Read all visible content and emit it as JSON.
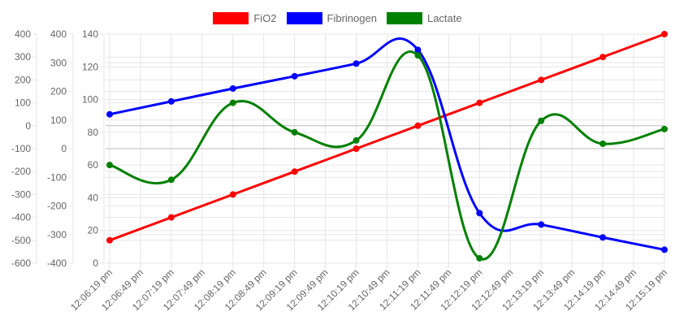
{
  "colors": {
    "fio2": "#ff0000",
    "fibrinogen": "#0000ff",
    "lactate": "#008000",
    "grid": "#e6e6e6",
    "zero_line": "#bbbbbb",
    "tick_text": "#666666"
  },
  "chart_data": {
    "type": "line",
    "legend_position": "top",
    "grid": true,
    "curve": "smooth",
    "categories": [
      "12:06:19 pm",
      "12:06:49 pm",
      "12:07:19 pm",
      "12:07:49 pm",
      "12:08:19 pm",
      "12:08:49 pm",
      "12:09:19 pm",
      "12:09:49 pm",
      "12:10:19 pm",
      "12:10:49 pm",
      "12:11:19 pm",
      "12:11:49 pm",
      "12:12:19 pm",
      "12:12:49 pm",
      "12:13:19 pm",
      "12:13:49 pm",
      "12:14:19 pm",
      "12:14:49 pm",
      "12:15:19 pm"
    ],
    "axes": [
      {
        "id": "y1",
        "min": -600,
        "max": 400,
        "ticks": [
          "400",
          "300",
          "200",
          "100",
          "0",
          "-100",
          "-200",
          "-300",
          "-400",
          "-500",
          "-600"
        ]
      },
      {
        "id": "y2",
        "min": -400,
        "max": 400,
        "ticks": [
          "400",
          "300",
          "200",
          "100",
          "0",
          "-100",
          "-200",
          "-300",
          "-400"
        ]
      },
      {
        "id": "y3",
        "min": 0,
        "max": 140,
        "ticks": [
          "140",
          "120",
          "100",
          "80",
          "60",
          "40",
          "20",
          "0"
        ]
      }
    ],
    "series": [
      {
        "name": "FiO2",
        "color_key": "fio2",
        "axis": "y1",
        "points": [
          [
            0,
            -500
          ],
          [
            2,
            -400
          ],
          [
            4,
            -300
          ],
          [
            6,
            -200
          ],
          [
            8,
            -100
          ],
          [
            10,
            0
          ],
          [
            12,
            100
          ],
          [
            14,
            200
          ],
          [
            16,
            300
          ],
          [
            18,
            400
          ]
        ]
      },
      {
        "name": "Fibrinogen",
        "color_key": "fibrinogen",
        "axis": "y2",
        "points": [
          [
            0,
            120
          ],
          [
            2,
            165
          ],
          [
            4,
            210
          ],
          [
            6,
            253
          ],
          [
            8,
            297
          ],
          [
            10,
            345
          ],
          [
            12,
            -225
          ],
          [
            14,
            -265
          ],
          [
            16,
            -310
          ],
          [
            18,
            -353
          ]
        ]
      },
      {
        "name": "Lactate",
        "color_key": "lactate",
        "axis": "y3",
        "points": [
          [
            0,
            60
          ],
          [
            2,
            51
          ],
          [
            4,
            98
          ],
          [
            6,
            80
          ],
          [
            8,
            75
          ],
          [
            10,
            127
          ],
          [
            12,
            3
          ],
          [
            14,
            87
          ],
          [
            16,
            73
          ],
          [
            18,
            82
          ]
        ]
      }
    ]
  }
}
